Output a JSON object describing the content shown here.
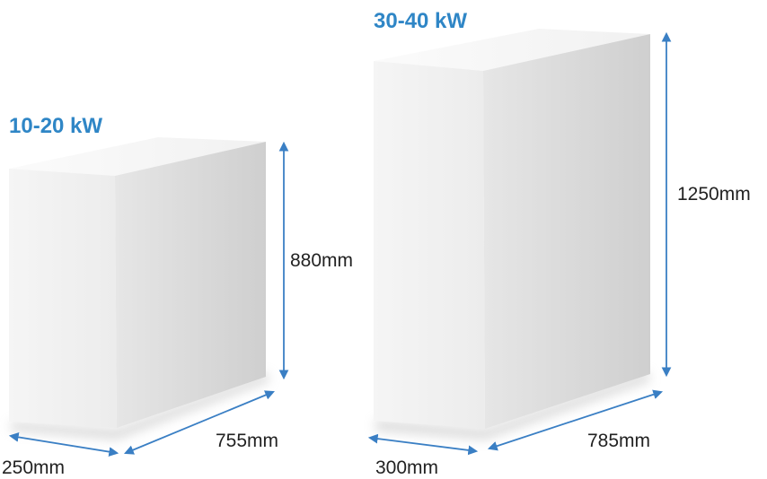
{
  "colors": {
    "accent": "#2f86c6",
    "arrow": "#3a7fc4",
    "box_left_face": "#f3f3f3",
    "box_right_face": "#dcdcdc",
    "box_top_face": "#f7f7f7",
    "text": "#222222"
  },
  "units": [
    {
      "power_label": "10-20 kW",
      "height_label": "880mm",
      "width_label": "250mm",
      "depth_label": "755mm"
    },
    {
      "power_label": "30-40 kW",
      "height_label": "1250mm",
      "width_label": "300mm",
      "depth_label": "785mm"
    }
  ]
}
